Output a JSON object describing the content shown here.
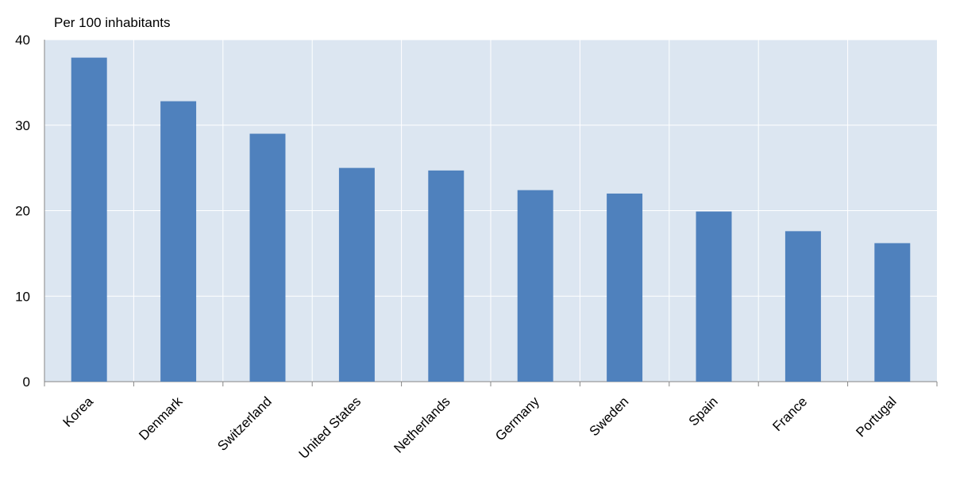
{
  "chart_data": {
    "type": "bar",
    "title": "Per 100 inhabitants",
    "categories": [
      "Korea",
      "Denmark",
      "Switzerland",
      "United States",
      "Netherlands",
      "Germany",
      "Sweden",
      "Spain",
      "France",
      "Portugal"
    ],
    "values": [
      37.9,
      32.8,
      29.0,
      25.0,
      24.7,
      22.4,
      22.0,
      19.9,
      17.6,
      16.2
    ],
    "color": "#4f81bd",
    "ylim": [
      0,
      40
    ],
    "yticks": [
      0,
      10,
      20,
      30,
      40
    ],
    "grid": true
  }
}
